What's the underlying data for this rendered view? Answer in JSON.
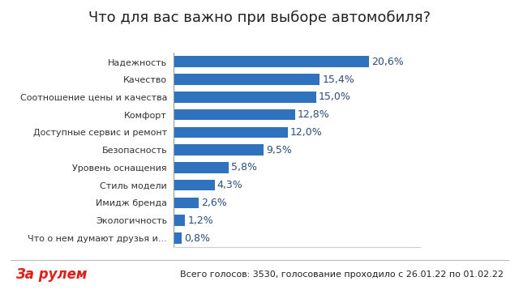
{
  "chart_data": {
    "type": "bar",
    "orientation": "horizontal",
    "title": "Что для вас важно при выборе автомобиля?",
    "categories": [
      "Надежность",
      "Качество",
      "Соотношение цены и качества",
      "Комфорт",
      "Доступные сервис и ремонт",
      "Безопасность",
      "Уровень оснащения",
      "Стиль модели",
      "Имидж бренда",
      "Экологичность",
      "Что о нем думают друзья и..."
    ],
    "values": [
      20.6,
      15.4,
      15.0,
      12.8,
      12.0,
      9.5,
      5.8,
      4.3,
      2.6,
      1.2,
      0.8
    ],
    "value_labels": [
      "20,6%",
      "15,4%",
      "15,0%",
      "12,8%",
      "12,0%",
      "9,5%",
      "5,8%",
      "4,3%",
      "2,6%",
      "1,2%",
      "0,8%"
    ],
    "data_labels": true,
    "color": "#2f72bd",
    "xlim": [
      0,
      26
    ],
    "tick_labels": "y",
    "grid": false,
    "source": "За рулем",
    "note": "Всего голосов: 3530, голосование проходило с 26.01.22 по 01.02.22"
  }
}
